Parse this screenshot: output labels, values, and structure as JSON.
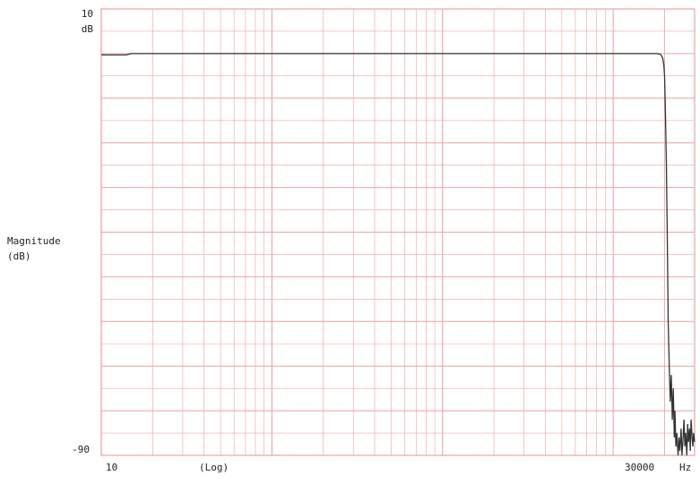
{
  "chart_data": {
    "type": "line",
    "title": "",
    "ylabel_line1": "Magnitude",
    "ylabel_line2": "(dB)",
    "xscale": "log",
    "xlim": [
      10,
      30000
    ],
    "ylim": [
      -90,
      10
    ],
    "y_top_tick": "10",
    "y_top_unit": "dB",
    "y_bottom_tick": "-90",
    "x_left_tick": "10",
    "x_scale_label": "(Log)",
    "x_right_tick": "30000",
    "x_unit": "Hz",
    "grid": true,
    "grid_color": "#e9a4a4",
    "line_color": "#333333",
    "series": [
      {
        "x": [
          10,
          11,
          12,
          13,
          14,
          15,
          16,
          20,
          50,
          100,
          500,
          1000,
          5000,
          10000,
          15000,
          18000,
          19000,
          19500,
          19800,
          20000,
          20200,
          20500,
          20800,
          21000,
          21300,
          21600,
          21900,
          22200,
          22500,
          22800,
          23000,
          23300,
          23600,
          24000,
          24300,
          24600,
          25000,
          25300,
          25600,
          26000,
          26300,
          26600,
          27000,
          27300,
          27600,
          28000,
          28300,
          28600,
          29000,
          29300,
          29600,
          30000
        ],
        "y": [
          -0.3,
          -0.3,
          -0.3,
          -0.3,
          -0.3,
          0.0,
          0.0,
          0.0,
          0.0,
          0.0,
          0.0,
          0.0,
          0.0,
          0.0,
          0.0,
          0.0,
          -0.2,
          -1.0,
          -2.5,
          -5.0,
          -12.0,
          -25.0,
          -45.0,
          -60.0,
          -70.0,
          -78.0,
          -72.0,
          -82.0,
          -75.0,
          -86.0,
          -80.0,
          -88.0,
          -85.0,
          -90.0,
          -86.0,
          -89.0,
          -84.0,
          -90.0,
          -87.0,
          -82.0,
          -88.0,
          -85.0,
          -90.0,
          -83.0,
          -87.0,
          -84.0,
          -89.0,
          -82.0,
          -86.0,
          -88.0,
          -85.0,
          -87.0
        ]
      }
    ]
  }
}
